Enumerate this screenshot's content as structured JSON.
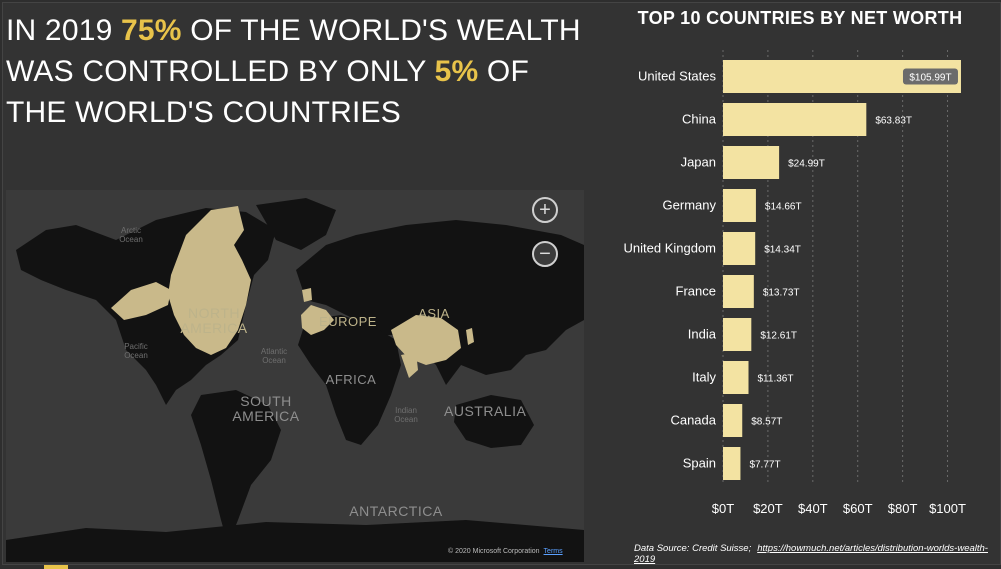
{
  "headline": {
    "part1": "IN 2019 ",
    "highlight1": "75%",
    "part2": " OF THE WORLD'S WEALTH WAS CONTROLLED BY ONLY ",
    "highlight2": "5%",
    "part3": " OF THE WORLD'S COUNTRIES"
  },
  "map": {
    "labels": {
      "north_america": "NORTH AMERICA",
      "europe": "EUROPE",
      "asia": "ASIA",
      "africa": "AFRICA",
      "south_america": "SOUTH AMERICA",
      "australia": "AUSTRALIA",
      "antarctica": "ANTARCTICA"
    },
    "oceans": {
      "arctic": "Arctic Ocean",
      "pacific": "Pacific Ocean",
      "atlantic": "Atlantic Ocean",
      "indian": "Indian Ocean"
    },
    "zoom_in": "+",
    "zoom_out": "−",
    "copyright": "© 2020 Microsoft Corporation",
    "terms": "Terms",
    "highlight_color": "#c9b98a",
    "land_color": "#111111",
    "water_color": "#3a3a3a"
  },
  "chart_data": {
    "type": "bar",
    "orientation": "horizontal",
    "title": "TOP 10 COUNTRIES BY NET WORTH",
    "categories": [
      "United States",
      "China",
      "Japan",
      "Germany",
      "United Kingdom",
      "France",
      "India",
      "Italy",
      "Canada",
      "Spain"
    ],
    "values": [
      105.99,
      63.83,
      24.99,
      14.66,
      14.34,
      13.73,
      12.61,
      11.36,
      8.57,
      7.77
    ],
    "value_labels": [
      "$105.99T",
      "$63.83T",
      "$24.99T",
      "$14.66T",
      "$14.34T",
      "$13.73T",
      "$12.61T",
      "$11.36T",
      "$8.57T",
      "$7.77T"
    ],
    "xlim": [
      0,
      106
    ],
    "xticks": [
      0,
      20,
      40,
      60,
      80,
      100
    ],
    "xtick_labels": [
      "$0T",
      "$20T",
      "$40T",
      "$60T",
      "$80T",
      "$100T"
    ],
    "grid": "vertical dashed",
    "bar_color": "#f3e3a2"
  },
  "source": {
    "label": "Data Source: Credit Suisse;",
    "url": "https://howmuch.net/articles/distribution-worlds-wealth-2019"
  }
}
